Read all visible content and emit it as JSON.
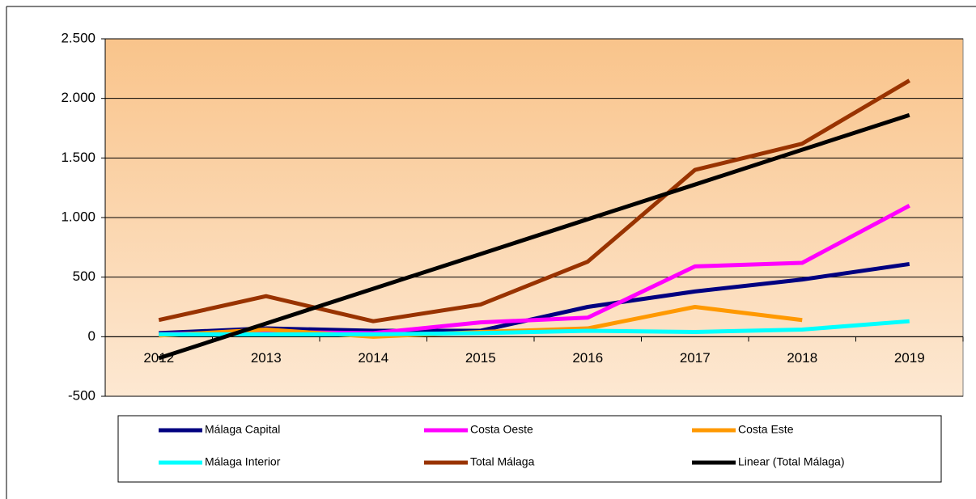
{
  "chart_data": {
    "type": "line",
    "categories": [
      "2012",
      "2013",
      "2014",
      "2015",
      "2016",
      "2017",
      "2018",
      "2019"
    ],
    "series": [
      {
        "name": "Málaga Capital",
        "color": "#000080",
        "values": [
          30,
          70,
          50,
          50,
          250,
          380,
          480,
          610
        ]
      },
      {
        "name": "Costa Oeste",
        "color": "#ff00ff",
        "values": [
          20,
          40,
          30,
          120,
          160,
          590,
          620,
          1100
        ]
      },
      {
        "name": "Costa Este",
        "color": "#ff9900",
        "values": [
          10,
          60,
          0,
          40,
          70,
          250,
          140,
          null
        ]
      },
      {
        "name": "Málaga Interior",
        "color": "#00ffff",
        "values": [
          20,
          20,
          20,
          30,
          50,
          40,
          60,
          130
        ]
      },
      {
        "name": "Total Málaga",
        "color": "#993300",
        "values": [
          140,
          340,
          130,
          270,
          630,
          1400,
          1620,
          2150
        ]
      },
      {
        "name": "Linear (Total Málaga)",
        "color": "#000000",
        "values": [
          -180,
          111,
          403,
          694,
          986,
          1277,
          1569,
          1860
        ]
      }
    ],
    "ylim": [
      -500,
      2500
    ],
    "yticks": [
      -500,
      0,
      500,
      {
        "value": 1000,
        "label": "1.000"
      },
      {
        "value": 1500,
        "label": "1.500"
      },
      {
        "value": 2000,
        "label": "2.000"
      },
      {
        "value": 2500,
        "label": "2.500"
      }
    ],
    "grid": true,
    "legend": "bottom"
  }
}
